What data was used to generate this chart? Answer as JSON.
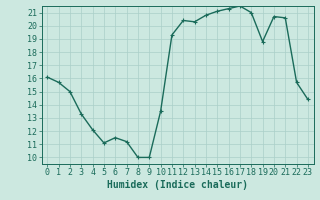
{
  "x": [
    0,
    1,
    2,
    3,
    4,
    5,
    6,
    7,
    8,
    9,
    10,
    11,
    12,
    13,
    14,
    15,
    16,
    17,
    18,
    19,
    20,
    21,
    22,
    23
  ],
  "y": [
    16.1,
    15.7,
    15.0,
    13.3,
    12.1,
    11.1,
    11.5,
    11.2,
    10.0,
    10.0,
    13.5,
    19.3,
    20.4,
    20.3,
    20.8,
    21.1,
    21.3,
    21.5,
    21.0,
    18.8,
    20.7,
    20.6,
    15.7,
    14.4
  ],
  "xlim": [
    -0.5,
    23.5
  ],
  "ylim": [
    9.5,
    21.5
  ],
  "yticks": [
    10,
    11,
    12,
    13,
    14,
    15,
    16,
    17,
    18,
    19,
    20,
    21
  ],
  "xticks": [
    0,
    1,
    2,
    3,
    4,
    5,
    6,
    7,
    8,
    9,
    10,
    11,
    12,
    13,
    14,
    15,
    16,
    17,
    18,
    19,
    20,
    21,
    22,
    23
  ],
  "xlabel": "Humidex (Indice chaleur)",
  "line_color": "#1a6b5a",
  "marker": "+",
  "marker_size": 3,
  "bg_color": "#cce8e0",
  "grid_color": "#aacfc8",
  "tick_color": "#1a6b5a",
  "label_color": "#1a6b5a",
  "xlabel_fontsize": 7,
  "tick_fontsize": 6,
  "linewidth": 1.0
}
